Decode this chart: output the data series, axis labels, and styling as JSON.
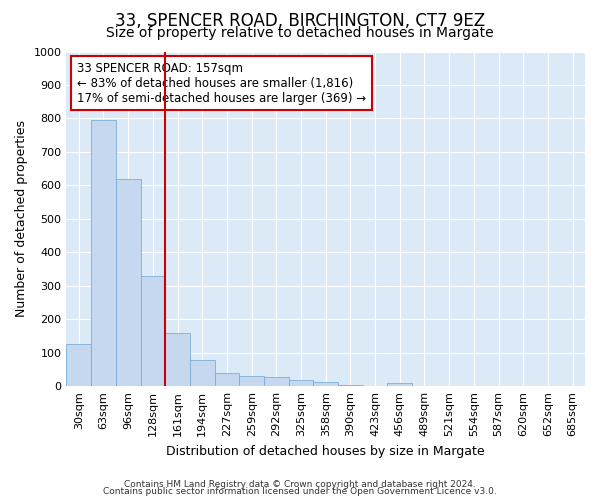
{
  "title1": "33, SPENCER ROAD, BIRCHINGTON, CT7 9EZ",
  "title2": "Size of property relative to detached houses in Margate",
  "xlabel": "Distribution of detached houses by size in Margate",
  "ylabel": "Number of detached properties",
  "categories": [
    "30sqm",
    "63sqm",
    "96sqm",
    "128sqm",
    "161sqm",
    "194sqm",
    "227sqm",
    "259sqm",
    "292sqm",
    "325sqm",
    "358sqm",
    "390sqm",
    "423sqm",
    "456sqm",
    "489sqm",
    "521sqm",
    "554sqm",
    "587sqm",
    "620sqm",
    "652sqm",
    "685sqm"
  ],
  "values": [
    125,
    795,
    620,
    330,
    160,
    78,
    40,
    30,
    27,
    18,
    13,
    5,
    0,
    9,
    0,
    0,
    0,
    0,
    0,
    0,
    0
  ],
  "bar_color": "#c5d8f0",
  "bar_edge_color": "#7aafd4",
  "vline_color": "#cc0000",
  "ylim": [
    0,
    1000
  ],
  "annotation_line1": "33 SPENCER ROAD: 157sqm",
  "annotation_line2": "← 83% of detached houses are smaller (1,816)",
  "annotation_line3": "17% of semi-detached houses are larger (369) →",
  "annotation_box_color": "#ffffff",
  "annotation_box_edge": "#cc0000",
  "footer1": "Contains HM Land Registry data © Crown copyright and database right 2024.",
  "footer2": "Contains public sector information licensed under the Open Government Licence v3.0.",
  "fig_bg_color": "#ffffff",
  "plot_bg_color": "#dce9f7",
  "title1_fontsize": 12,
  "title2_fontsize": 10,
  "tick_fontsize": 8,
  "ylabel_fontsize": 9,
  "xlabel_fontsize": 9,
  "footer_fontsize": 6.5,
  "annotation_fontsize": 8.5,
  "vline_xindex": 3.5
}
